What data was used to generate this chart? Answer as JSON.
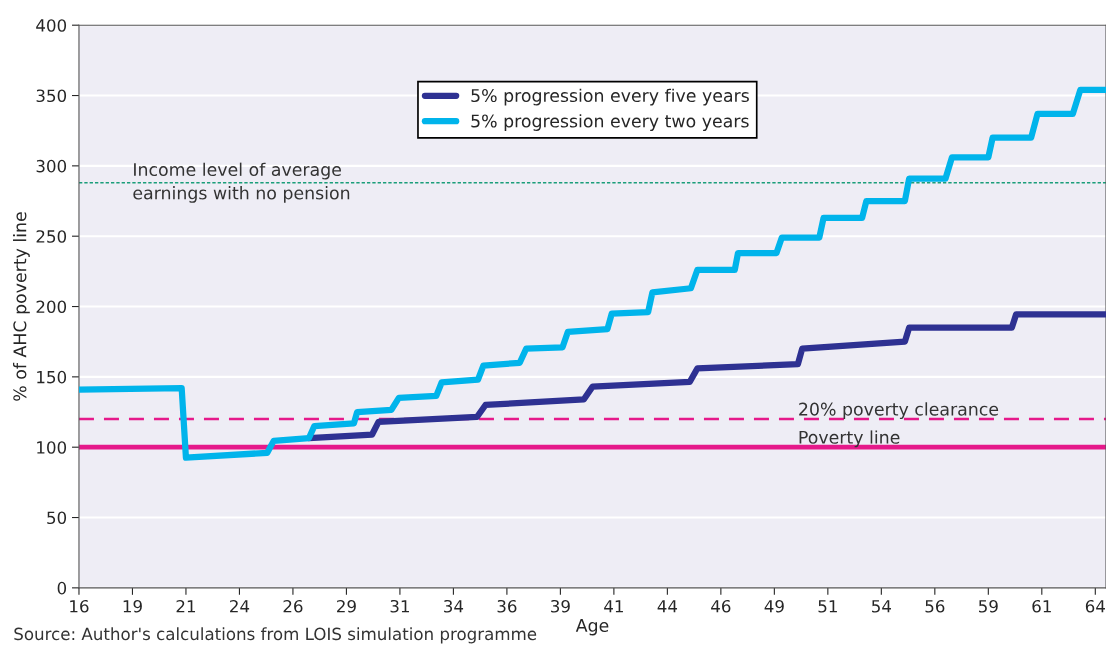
{
  "chart_data": {
    "type": "line",
    "xlabel": "Age",
    "ylabel": "% of AHC poverty line",
    "xlim": [
      16,
      64
    ],
    "xticks": [
      16,
      {
        "value": 18.5,
        "label": "19"
      },
      21,
      {
        "value": 23.5,
        "label": "24"
      },
      26,
      {
        "value": 28.5,
        "label": "29"
      },
      31,
      {
        "value": 33.5,
        "label": "34"
      },
      36,
      {
        "value": 38.5,
        "label": "39"
      },
      41,
      {
        "value": 43.5,
        "label": "44"
      },
      46,
      {
        "value": 48.5,
        "label": "49"
      },
      51,
      {
        "value": 53.5,
        "label": "54"
      },
      56,
      {
        "value": 58.5,
        "label": "59"
      },
      61,
      {
        "value": 63.5,
        "label": "64"
      }
    ],
    "ylim": [
      0,
      400
    ],
    "yticks": [
      0,
      50,
      100,
      150,
      200,
      250,
      300,
      350,
      400
    ],
    "grid": "y",
    "legend": "top",
    "line_style": "solid",
    "marker": "none",
    "series": [
      {
        "name": "5% progression every five years",
        "color": "#2e3192",
        "x": [
          26.75,
          29.7,
          30.0,
          34.6,
          35.0,
          39.6,
          40.0,
          44.55,
          44.9,
          49.6,
          49.8,
          54.6,
          54.8,
          59.6,
          59.8,
          64
        ],
        "values": [
          106.5,
          109,
          118,
          121.5,
          130,
          134,
          143,
          146.5,
          156,
          159,
          170,
          175,
          185,
          185,
          194.5,
          194.5
        ]
      },
      {
        "name": "5% progression every two years",
        "color": "#00b4eb",
        "x": [
          16,
          20.8,
          21.0,
          24.8,
          25.1,
          26.75,
          27.0,
          28.85,
          29.0,
          30.6,
          30.95,
          32.7,
          32.95,
          34.65,
          34.9,
          36.6,
          36.9,
          38.6,
          38.85,
          40.7,
          40.9,
          42.6,
          42.8,
          44.6,
          44.9,
          46.65,
          46.8,
          48.6,
          48.85,
          50.6,
          50.8,
          52.6,
          52.8,
          54.6,
          54.8,
          56.5,
          56.8,
          58.5,
          58.7,
          60.5,
          60.8,
          62.45,
          62.8,
          64
        ],
        "values": [
          141,
          142,
          92.5,
          96,
          104.5,
          106.5,
          115,
          117,
          125,
          126.5,
          135,
          136.5,
          146,
          148,
          158,
          160,
          170,
          171,
          182,
          184,
          195,
          196,
          210,
          213,
          226,
          226,
          238,
          238,
          249,
          249,
          263,
          263,
          275,
          275,
          291,
          291,
          306,
          306,
          320,
          320,
          337,
          337,
          354,
          354
        ]
      }
    ],
    "ref_lines": [
      {
        "axis": "y",
        "value": 288,
        "label": "Income level of average\nearnings with no pension",
        "color": "#1a9e7a",
        "line_style": "dotted"
      },
      {
        "axis": "y",
        "value": 120,
        "label": "20% poverty clearance",
        "color": "#e5198a",
        "line_style": "dashed"
      },
      {
        "axis": "y",
        "value": 100,
        "label": "Poverty line",
        "color": "#e5198a",
        "line_style": "solid"
      }
    ],
    "annotations": [
      "Source: Author's calculations from LOIS simulation programme"
    ]
  }
}
